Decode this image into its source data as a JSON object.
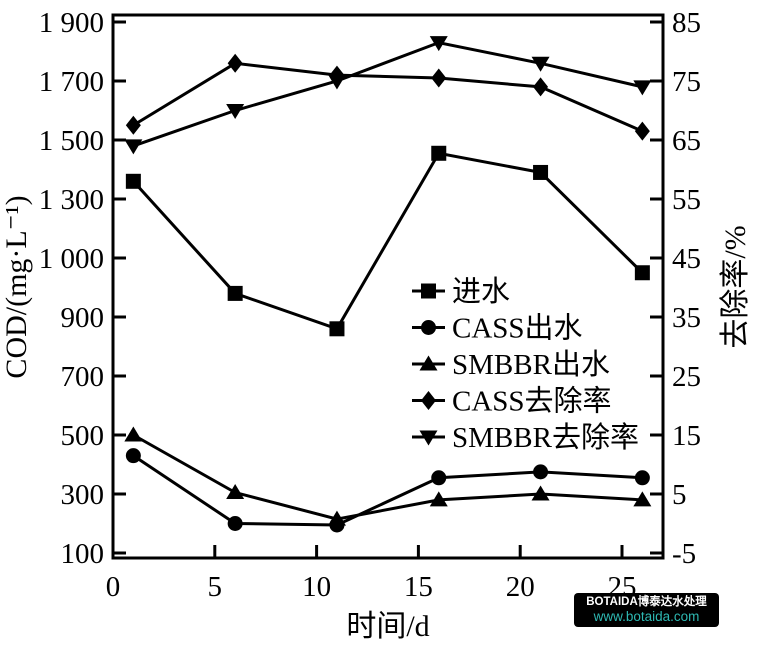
{
  "chart_data": {
    "type": "line",
    "title": "",
    "xlabel": "时间/d",
    "x_ticks": [
      "0",
      "5",
      "10",
      "15",
      "20",
      "25"
    ],
    "x_tick_values": [
      0,
      5,
      10,
      15,
      20,
      25
    ],
    "xlim": [
      0,
      27
    ],
    "grid": false,
    "legend_position": "center-right-inside",
    "line_color": "#000000",
    "background_color": "#ffffff",
    "left_axis": {
      "label": "COD/(mg·L⁻¹)",
      "tick_labels": [
        "100",
        "300",
        "500",
        "700",
        "900",
        "1 000",
        "1 300",
        "1 500",
        "1 700",
        "1 900"
      ],
      "tick_values": [
        100,
        300,
        500,
        700,
        900,
        1000,
        1300,
        1500,
        1700,
        1900
      ]
    },
    "right_axis": {
      "label": "去除率/%",
      "tick_labels": [
        "-5",
        "5",
        "15",
        "25",
        "35",
        "45",
        "55",
        "65",
        "75",
        "85"
      ],
      "tick_values": [
        -5,
        5,
        15,
        25,
        35,
        45,
        55,
        65,
        75,
        85
      ]
    },
    "x": [
      1,
      6,
      11,
      16,
      21,
      26
    ],
    "series": [
      {
        "name": "进水",
        "marker": "square",
        "axis": "left",
        "values": [
          1360,
          940,
          860,
          1455,
          1390,
          975
        ]
      },
      {
        "name": "CASS出水",
        "marker": "circle",
        "axis": "left",
        "values": [
          430,
          200,
          195,
          355,
          375,
          355
        ]
      },
      {
        "name": "SMBBR出水",
        "marker": "triangle-up",
        "axis": "left",
        "values": [
          500,
          305,
          215,
          280,
          300,
          280
        ]
      },
      {
        "name": "CASS去除率",
        "marker": "diamond",
        "axis": "right",
        "values": [
          67.5,
          78,
          76,
          75.5,
          74,
          66.5
        ]
      },
      {
        "name": "SMBBR去除率",
        "marker": "triangle-down",
        "axis": "right",
        "values": [
          64,
          70,
          75,
          81.5,
          78,
          74
        ]
      }
    ]
  },
  "watermark": {
    "line1": "BOTAIDA博泰达水处理",
    "line2": "www.botaida.com",
    "background_color": "#000000",
    "line1_color": "#ffffff",
    "line2_color": "#2eb8b2"
  }
}
